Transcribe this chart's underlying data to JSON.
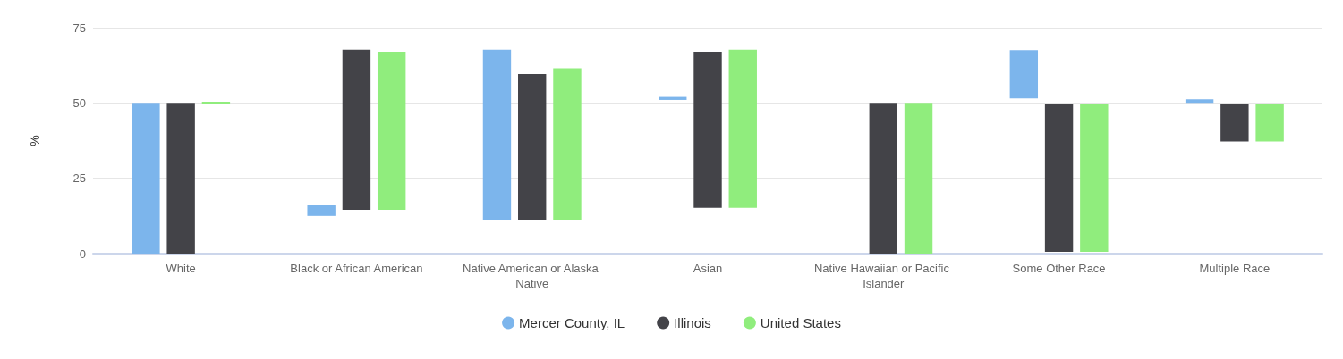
{
  "chart_data": {
    "type": "bar",
    "ylabel": "%",
    "categories": [
      "White",
      "Black or African American",
      "Native American or Alaska Native",
      "Asian",
      "Native Hawaiian or Pacific Islander",
      "Some Other Race",
      "Multiple Race"
    ],
    "ylim": [
      0,
      75
    ],
    "yticks": [
      0,
      25,
      50,
      75
    ],
    "grid": "y",
    "legend": "bottom",
    "series": [
      {
        "name": "Mercer County, IL",
        "color": "#7cb5ec",
        "base": [
          0,
          12.5,
          11.3,
          51,
          null,
          51.5,
          50
        ],
        "values": [
          50,
          3.5,
          56.4,
          1,
          null,
          16,
          1.2
        ]
      },
      {
        "name": "Illinois",
        "color": "#434348",
        "base": [
          0,
          14.5,
          11.3,
          15.2,
          0,
          0.6,
          37.2
        ],
        "values": [
          50,
          53.2,
          48.3,
          51.8,
          50,
          49.1,
          12.5
        ]
      },
      {
        "name": "United States",
        "color": "#90ed7d",
        "base": [
          49.6,
          14.5,
          11.3,
          15.2,
          0,
          0.6,
          37.2
        ],
        "values": [
          0.8,
          52.5,
          50.2,
          52.5,
          50,
          49.1,
          12.5
        ]
      }
    ]
  }
}
